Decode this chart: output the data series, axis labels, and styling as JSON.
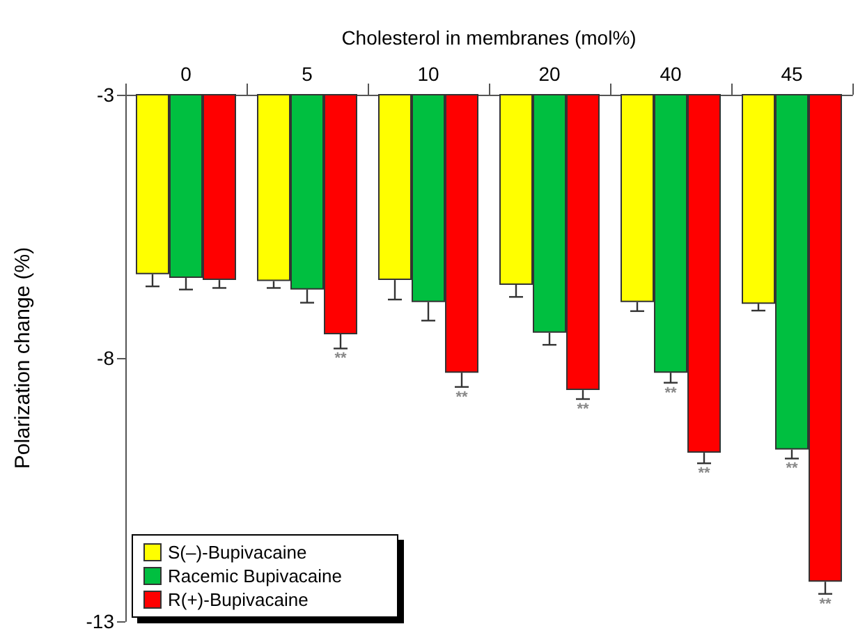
{
  "chart_data": {
    "type": "bar",
    "xlabel": "Cholesterol in membranes (mol%)",
    "ylabel": "Polarization change (%)",
    "categories": [
      "0",
      "5",
      "10",
      "20",
      "40",
      "45"
    ],
    "series": [
      {
        "name": "S(–)-Bupivacaine",
        "color": "#ffff00",
        "values": [
          -6.41,
          -6.54,
          -6.52,
          -6.61,
          -6.94,
          -6.97
        ],
        "errors": [
          [
            -6.64,
            -6.41
          ],
          [
            -6.67,
            -6.54
          ],
          [
            -6.89,
            -6.52
          ],
          [
            -6.84,
            -6.61
          ],
          [
            -7.11,
            -6.94
          ],
          [
            -7.1,
            -6.97
          ]
        ]
      },
      {
        "name": "Racemic Bupivacaine",
        "color": "#00bf40",
        "values": [
          -6.48,
          -6.7,
          -6.94,
          -7.52,
          -8.28,
          -9.74
        ],
        "errors": [
          [
            -6.7,
            -6.48
          ],
          [
            -6.95,
            -6.7
          ],
          [
            -7.29,
            -6.94
          ],
          [
            -7.75,
            -7.52
          ],
          [
            -8.47,
            -8.28
          ],
          [
            -9.91,
            -9.74
          ]
        ],
        "value_labels": [
          null,
          null,
          null,
          null,
          "**",
          "**"
        ]
      },
      {
        "name": "R(+)-Bupivacaine",
        "color": "#ff0000",
        "values": [
          -6.52,
          -7.55,
          -8.28,
          -8.61,
          -9.8,
          -12.25
        ],
        "errors": [
          [
            -6.67,
            -6.52
          ],
          [
            -7.82,
            -7.55
          ],
          [
            -8.55,
            -8.28
          ],
          [
            -8.78,
            -8.61
          ],
          [
            -10.0,
            -9.8
          ],
          [
            -12.48,
            -12.25
          ]
        ],
        "value_labels": [
          null,
          "**",
          "**",
          "**",
          "**",
          "**"
        ]
      }
    ],
    "ylim": [
      -13,
      -3
    ],
    "yticks": [
      -3,
      -8,
      -13
    ],
    "legend": "bottom left"
  }
}
